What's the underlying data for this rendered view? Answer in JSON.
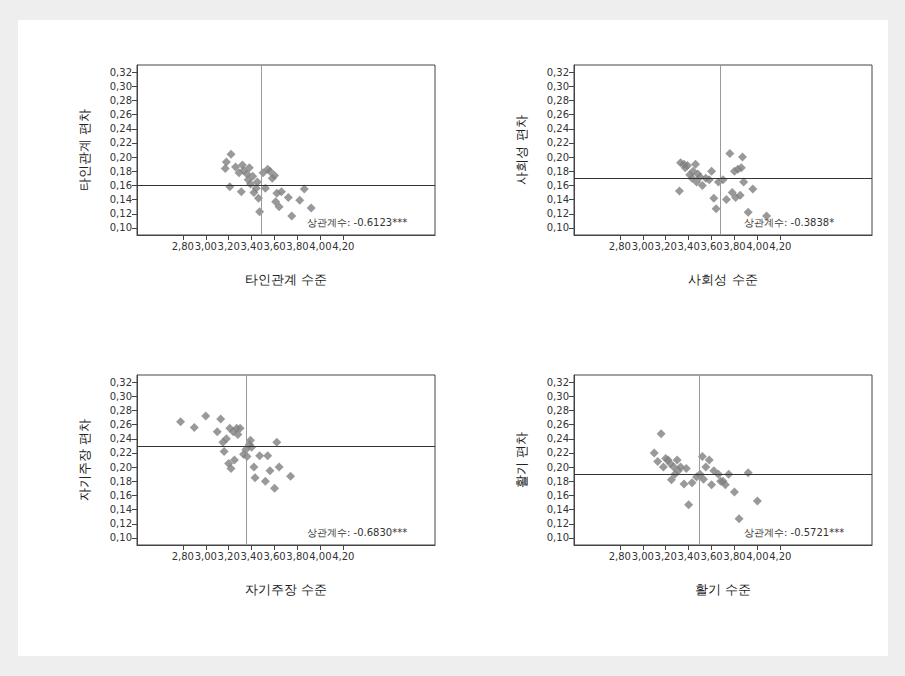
{
  "chart_data": [
    {
      "type": "scatter",
      "x_label": "타인관계 수준",
      "y_label": "타인관계 편차",
      "annotation": "상관계수: -0.6123***",
      "color": "#808080",
      "marker": "diamond",
      "grid": false,
      "reference_x": 3.48,
      "reference_y": 0.16,
      "xlim": [
        2.4,
        5.0
      ],
      "ylim": [
        0.09,
        0.33
      ],
      "xticks": [
        {
          "value": 2.8,
          "label": "2,80"
        },
        {
          "value": 3.0,
          "label": "3,00"
        },
        {
          "value": 3.2,
          "label": "3,20"
        },
        {
          "value": 3.4,
          "label": "3,40"
        },
        {
          "value": 3.6,
          "label": "3,60"
        },
        {
          "value": 3.8,
          "label": "3,80"
        },
        {
          "value": 4.0,
          "label": "4,00"
        },
        {
          "value": 4.2,
          "label": "4,20"
        }
      ],
      "yticks": [
        {
          "value": 0.1,
          "label": "0,10"
        },
        {
          "value": 0.12,
          "label": "0,12"
        },
        {
          "value": 0.14,
          "label": "0,14"
        },
        {
          "value": 0.16,
          "label": "0,16"
        },
        {
          "value": 0.18,
          "label": "0,18"
        },
        {
          "value": 0.2,
          "label": "0,20"
        },
        {
          "value": 0.22,
          "label": "0,22"
        },
        {
          "value": 0.24,
          "label": "0,24"
        },
        {
          "value": 0.26,
          "label": "0,26"
        },
        {
          "value": 0.28,
          "label": "0,28"
        },
        {
          "value": 0.3,
          "label": "0,30"
        },
        {
          "value": 0.32,
          "label": "0,32"
        }
      ],
      "x": [
        3.18,
        3.17,
        3.22,
        3.21,
        3.26,
        3.29,
        3.32,
        3.33,
        3.31,
        3.36,
        3.37,
        3.39,
        3.38,
        3.41,
        3.42,
        3.44,
        3.45,
        3.46,
        3.47,
        3.5,
        3.52,
        3.54,
        3.56,
        3.58,
        3.6,
        3.62,
        3.61,
        3.66,
        3.64,
        3.72,
        3.75,
        3.82,
        3.86,
        3.92
      ],
      "values": [
        0.193,
        0.184,
        0.204,
        0.158,
        0.186,
        0.178,
        0.189,
        0.181,
        0.151,
        0.176,
        0.168,
        0.162,
        0.185,
        0.173,
        0.15,
        0.156,
        0.165,
        0.142,
        0.123,
        0.178,
        0.156,
        0.183,
        0.18,
        0.17,
        0.174,
        0.149,
        0.137,
        0.151,
        0.13,
        0.143,
        0.117,
        0.139,
        0.155,
        0.128
      ]
    },
    {
      "type": "scatter",
      "x_label": "사회성 수준",
      "y_label": "사회성 편차",
      "annotation": "상관계수: -0.3838*",
      "color": "#808080",
      "marker": "diamond",
      "grid": false,
      "reference_x": 3.68,
      "reference_y": 0.165,
      "xlim": [
        2.4,
        5.0
      ],
      "ylim": [
        0.09,
        0.33
      ],
      "xticks": [
        {
          "value": 2.8,
          "label": "2,80"
        },
        {
          "value": 3.0,
          "label": "3,00"
        },
        {
          "value": 3.2,
          "label": "3,20"
        },
        {
          "value": 3.4,
          "label": "3,40"
        },
        {
          "value": 3.6,
          "label": "3,60"
        },
        {
          "value": 3.8,
          "label": "3,80"
        },
        {
          "value": 4.0,
          "label": "4,00"
        },
        {
          "value": 4.2,
          "label": "4,20"
        }
      ],
      "yticks": [
        {
          "value": 0.1,
          "label": "0,10"
        },
        {
          "value": 0.12,
          "label": "0,12"
        },
        {
          "value": 0.14,
          "label": "0,14"
        },
        {
          "value": 0.16,
          "label": "0,16"
        },
        {
          "value": 0.18,
          "label": "0,18"
        },
        {
          "value": 0.2,
          "label": "0,20"
        },
        {
          "value": 0.22,
          "label": "0,22"
        },
        {
          "value": 0.24,
          "label": "0,24"
        },
        {
          "value": 0.26,
          "label": "0,26"
        },
        {
          "value": 0.28,
          "label": "0,28"
        },
        {
          "value": 0.3,
          "label": "0,30"
        },
        {
          "value": 0.32,
          "label": "0,32"
        }
      ],
      "x": [
        3.32,
        3.33,
        3.36,
        3.37,
        3.39,
        3.41,
        3.43,
        3.44,
        3.46,
        3.47,
        3.48,
        3.5,
        3.52,
        3.55,
        3.58,
        3.6,
        3.62,
        3.64,
        3.66,
        3.7,
        3.73,
        3.76,
        3.78,
        3.8,
        3.81,
        3.83,
        3.85,
        3.86,
        3.87,
        3.88,
        3.92,
        3.96,
        4.08
      ],
      "values": [
        0.152,
        0.192,
        0.19,
        0.185,
        0.188,
        0.175,
        0.17,
        0.18,
        0.19,
        0.165,
        0.176,
        0.172,
        0.16,
        0.17,
        0.168,
        0.18,
        0.142,
        0.127,
        0.165,
        0.168,
        0.14,
        0.205,
        0.15,
        0.18,
        0.143,
        0.183,
        0.146,
        0.185,
        0.2,
        0.165,
        0.122,
        0.155,
        0.117
      ]
    },
    {
      "type": "scatter",
      "x_label": "자기주장 수준",
      "y_label": "자기주장 편차",
      "annotation": "상관계수: -0.6830***",
      "color": "#808080",
      "marker": "diamond",
      "grid": false,
      "reference_x": 3.35,
      "reference_y": 0.225,
      "xlim": [
        2.4,
        5.0
      ],
      "ylim": [
        0.09,
        0.33
      ],
      "xticks": [
        {
          "value": 2.8,
          "label": "2,80"
        },
        {
          "value": 3.0,
          "label": "3,00"
        },
        {
          "value": 3.2,
          "label": "3,20"
        },
        {
          "value": 3.4,
          "label": "3,40"
        },
        {
          "value": 3.6,
          "label": "3,60"
        },
        {
          "value": 3.8,
          "label": "3,80"
        },
        {
          "value": 4.0,
          "label": "4,00"
        },
        {
          "value": 4.2,
          "label": "4,20"
        }
      ],
      "yticks": [
        {
          "value": 0.1,
          "label": "0,10"
        },
        {
          "value": 0.12,
          "label": "0,12"
        },
        {
          "value": 0.14,
          "label": "0,14"
        },
        {
          "value": 0.16,
          "label": "0,16"
        },
        {
          "value": 0.18,
          "label": "0,18"
        },
        {
          "value": 0.2,
          "label": "0,20"
        },
        {
          "value": 0.22,
          "label": "0,22"
        },
        {
          "value": 0.24,
          "label": "0,24"
        },
        {
          "value": 0.26,
          "label": "0,26"
        },
        {
          "value": 0.28,
          "label": "0,28"
        },
        {
          "value": 0.3,
          "label": "0,30"
        },
        {
          "value": 0.32,
          "label": "0,32"
        }
      ],
      "x": [
        2.78,
        2.9,
        3.0,
        3.1,
        3.13,
        3.15,
        3.16,
        3.18,
        3.2,
        3.21,
        3.22,
        3.24,
        3.25,
        3.27,
        3.28,
        3.3,
        3.33,
        3.35,
        3.36,
        3.38,
        3.39,
        3.4,
        3.42,
        3.43,
        3.47,
        3.52,
        3.54,
        3.56,
        3.6,
        3.62,
        3.64,
        3.74
      ],
      "values": [
        0.264,
        0.256,
        0.272,
        0.25,
        0.268,
        0.235,
        0.222,
        0.24,
        0.205,
        0.255,
        0.198,
        0.25,
        0.21,
        0.255,
        0.246,
        0.255,
        0.218,
        0.225,
        0.215,
        0.232,
        0.238,
        0.228,
        0.2,
        0.185,
        0.216,
        0.18,
        0.216,
        0.195,
        0.17,
        0.235,
        0.2,
        0.187
      ]
    },
    {
      "type": "scatter",
      "x_label": "활기 수준",
      "y_label": "활기 편차",
      "annotation": "상관계수: -0.5721***",
      "color": "#808080",
      "marker": "diamond",
      "grid": false,
      "reference_x": 3.49,
      "reference_y": 0.191,
      "xlim": [
        2.4,
        5.0
      ],
      "ylim": [
        0.09,
        0.33
      ],
      "xticks": [
        {
          "value": 2.8,
          "label": "2,80"
        },
        {
          "value": 3.0,
          "label": "3,00"
        },
        {
          "value": 3.2,
          "label": "3,20"
        },
        {
          "value": 3.4,
          "label": "3,40"
        },
        {
          "value": 3.6,
          "label": "3,60"
        },
        {
          "value": 3.8,
          "label": "3,80"
        },
        {
          "value": 4.0,
          "label": "4,00"
        },
        {
          "value": 4.2,
          "label": "4,20"
        }
      ],
      "yticks": [
        {
          "value": 0.1,
          "label": "0,10"
        },
        {
          "value": 0.12,
          "label": "0,12"
        },
        {
          "value": 0.14,
          "label": "0,14"
        },
        {
          "value": 0.16,
          "label": "0,16"
        },
        {
          "value": 0.18,
          "label": "0,18"
        },
        {
          "value": 0.2,
          "label": "0,20"
        },
        {
          "value": 0.22,
          "label": "0,22"
        },
        {
          "value": 0.24,
          "label": "0,24"
        },
        {
          "value": 0.26,
          "label": "0,26"
        },
        {
          "value": 0.28,
          "label": "0,28"
        },
        {
          "value": 0.3,
          "label": "0,30"
        },
        {
          "value": 0.32,
          "label": "0,32"
        }
      ],
      "x": [
        3.1,
        3.13,
        3.16,
        3.18,
        3.2,
        3.22,
        3.24,
        3.25,
        3.27,
        3.28,
        3.3,
        3.31,
        3.33,
        3.36,
        3.38,
        3.4,
        3.43,
        3.47,
        3.5,
        3.52,
        3.53,
        3.55,
        3.58,
        3.6,
        3.62,
        3.66,
        3.68,
        3.7,
        3.72,
        3.75,
        3.8,
        3.84,
        3.92,
        4.0
      ],
      "values": [
        0.22,
        0.208,
        0.247,
        0.2,
        0.212,
        0.21,
        0.205,
        0.182,
        0.2,
        0.19,
        0.21,
        0.195,
        0.2,
        0.176,
        0.198,
        0.147,
        0.178,
        0.186,
        0.19,
        0.215,
        0.183,
        0.2,
        0.21,
        0.175,
        0.195,
        0.19,
        0.18,
        0.18,
        0.175,
        0.19,
        0.165,
        0.127,
        0.192,
        0.152
      ]
    }
  ]
}
